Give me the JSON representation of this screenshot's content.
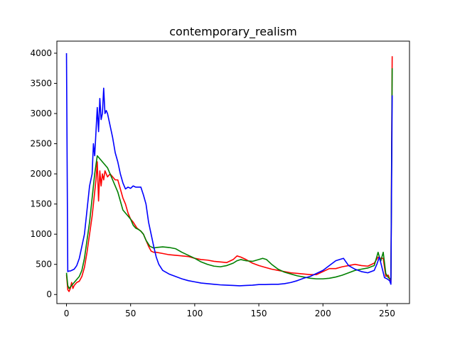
{
  "chart_data": {
    "type": "line",
    "title": "contemporary_realism",
    "xlabel": "",
    "ylabel": "",
    "xlim": [
      -7.5,
      267.5
    ],
    "ylim": [
      -150,
      4200
    ],
    "xticks": [
      0,
      50,
      100,
      150,
      200,
      250
    ],
    "yticks": [
      0,
      500,
      1000,
      1500,
      2000,
      2500,
      3000,
      3500,
      4000
    ],
    "grid": false,
    "legend": "none",
    "series": [
      {
        "color": "#ff0000",
        "points": [
          [
            0,
            330
          ],
          [
            1,
            80
          ],
          [
            2,
            50
          ],
          [
            3,
            100
          ],
          [
            4,
            200
          ],
          [
            5,
            100
          ],
          [
            6,
            150
          ],
          [
            8,
            200
          ],
          [
            10,
            220
          ],
          [
            12,
            300
          ],
          [
            14,
            450
          ],
          [
            16,
            700
          ],
          [
            18,
            1000
          ],
          [
            20,
            1300
          ],
          [
            22,
            1700
          ],
          [
            23,
            1900
          ],
          [
            24,
            2200
          ],
          [
            25,
            1550
          ],
          [
            26,
            2050
          ],
          [
            27,
            1800
          ],
          [
            28,
            2000
          ],
          [
            29,
            1900
          ],
          [
            30,
            2050
          ],
          [
            32,
            1950
          ],
          [
            34,
            2000
          ],
          [
            36,
            1950
          ],
          [
            38,
            1900
          ],
          [
            40,
            1900
          ],
          [
            42,
            1750
          ],
          [
            44,
            1600
          ],
          [
            46,
            1500
          ],
          [
            48,
            1350
          ],
          [
            50,
            1250
          ],
          [
            52,
            1200
          ],
          [
            55,
            1100
          ],
          [
            58,
            1050
          ],
          [
            60,
            1000
          ],
          [
            62,
            900
          ],
          [
            64,
            800
          ],
          [
            66,
            720
          ],
          [
            68,
            700
          ],
          [
            70,
            700
          ],
          [
            75,
            680
          ],
          [
            80,
            660
          ],
          [
            85,
            650
          ],
          [
            90,
            640
          ],
          [
            95,
            630
          ],
          [
            100,
            600
          ],
          [
            105,
            580
          ],
          [
            110,
            570
          ],
          [
            115,
            550
          ],
          [
            120,
            540
          ],
          [
            125,
            530
          ],
          [
            130,
            580
          ],
          [
            133,
            640
          ],
          [
            136,
            620
          ],
          [
            140,
            580
          ],
          [
            145,
            520
          ],
          [
            150,
            480
          ],
          [
            155,
            450
          ],
          [
            160,
            420
          ],
          [
            165,
            400
          ],
          [
            170,
            380
          ],
          [
            175,
            360
          ],
          [
            180,
            350
          ],
          [
            185,
            340
          ],
          [
            190,
            330
          ],
          [
            195,
            330
          ],
          [
            200,
            380
          ],
          [
            205,
            430
          ],
          [
            210,
            430
          ],
          [
            215,
            460
          ],
          [
            220,
            480
          ],
          [
            225,
            500
          ],
          [
            230,
            480
          ],
          [
            235,
            470
          ],
          [
            240,
            520
          ],
          [
            243,
            620
          ],
          [
            245,
            600
          ],
          [
            247,
            600
          ],
          [
            249,
            300
          ],
          [
            251,
            320
          ],
          [
            253,
            200
          ],
          [
            254,
            3950
          ]
        ]
      },
      {
        "color": "#008000",
        "points": [
          [
            0,
            360
          ],
          [
            1,
            150
          ],
          [
            2,
            100
          ],
          [
            4,
            150
          ],
          [
            6,
            200
          ],
          [
            8,
            250
          ],
          [
            10,
            300
          ],
          [
            12,
            400
          ],
          [
            14,
            600
          ],
          [
            16,
            900
          ],
          [
            18,
            1200
          ],
          [
            20,
            1600
          ],
          [
            22,
            2000
          ],
          [
            24,
            2300
          ],
          [
            26,
            2250
          ],
          [
            28,
            2200
          ],
          [
            30,
            2150
          ],
          [
            32,
            2100
          ],
          [
            34,
            2000
          ],
          [
            36,
            1900
          ],
          [
            38,
            1800
          ],
          [
            40,
            1700
          ],
          [
            42,
            1550
          ],
          [
            44,
            1400
          ],
          [
            46,
            1350
          ],
          [
            48,
            1300
          ],
          [
            50,
            1250
          ],
          [
            52,
            1150
          ],
          [
            54,
            1100
          ],
          [
            56,
            1080
          ],
          [
            58,
            1050
          ],
          [
            60,
            1000
          ],
          [
            62,
            900
          ],
          [
            65,
            800
          ],
          [
            68,
            770
          ],
          [
            70,
            780
          ],
          [
            75,
            790
          ],
          [
            80,
            780
          ],
          [
            85,
            760
          ],
          [
            90,
            700
          ],
          [
            95,
            650
          ],
          [
            100,
            600
          ],
          [
            105,
            540
          ],
          [
            110,
            500
          ],
          [
            115,
            470
          ],
          [
            120,
            460
          ],
          [
            125,
            480
          ],
          [
            130,
            520
          ],
          [
            133,
            560
          ],
          [
            136,
            580
          ],
          [
            140,
            560
          ],
          [
            145,
            550
          ],
          [
            150,
            580
          ],
          [
            153,
            600
          ],
          [
            156,
            580
          ],
          [
            160,
            500
          ],
          [
            165,
            420
          ],
          [
            170,
            370
          ],
          [
            175,
            340
          ],
          [
            180,
            310
          ],
          [
            185,
            290
          ],
          [
            190,
            270
          ],
          [
            195,
            260
          ],
          [
            200,
            260
          ],
          [
            205,
            270
          ],
          [
            210,
            290
          ],
          [
            215,
            320
          ],
          [
            220,
            360
          ],
          [
            225,
            400
          ],
          [
            230,
            420
          ],
          [
            235,
            440
          ],
          [
            240,
            480
          ],
          [
            243,
            700
          ],
          [
            245,
            550
          ],
          [
            247,
            700
          ],
          [
            249,
            350
          ],
          [
            251,
            280
          ],
          [
            253,
            250
          ],
          [
            254,
            3750
          ]
        ]
      },
      {
        "color": "#0000ff",
        "points": [
          [
            0,
            4000
          ],
          [
            1,
            380
          ],
          [
            2,
            390
          ],
          [
            3,
            390
          ],
          [
            4,
            400
          ],
          [
            6,
            420
          ],
          [
            8,
            480
          ],
          [
            10,
            600
          ],
          [
            12,
            800
          ],
          [
            14,
            1000
          ],
          [
            16,
            1400
          ],
          [
            18,
            1800
          ],
          [
            20,
            2000
          ],
          [
            21,
            2500
          ],
          [
            22,
            2300
          ],
          [
            23,
            2700
          ],
          [
            24,
            3100
          ],
          [
            25,
            2700
          ],
          [
            26,
            3250
          ],
          [
            27,
            2900
          ],
          [
            28,
            3000
          ],
          [
            29,
            3420
          ],
          [
            30,
            3000
          ],
          [
            31,
            3050
          ],
          [
            32,
            3000
          ],
          [
            34,
            2800
          ],
          [
            36,
            2600
          ],
          [
            38,
            2350
          ],
          [
            40,
            2200
          ],
          [
            42,
            2000
          ],
          [
            44,
            1850
          ],
          [
            46,
            1750
          ],
          [
            48,
            1780
          ],
          [
            50,
            1760
          ],
          [
            52,
            1800
          ],
          [
            54,
            1780
          ],
          [
            56,
            1780
          ],
          [
            58,
            1780
          ],
          [
            60,
            1650
          ],
          [
            62,
            1500
          ],
          [
            64,
            1200
          ],
          [
            66,
            1000
          ],
          [
            68,
            800
          ],
          [
            70,
            620
          ],
          [
            72,
            500
          ],
          [
            75,
            400
          ],
          [
            80,
            340
          ],
          [
            85,
            300
          ],
          [
            90,
            260
          ],
          [
            95,
            230
          ],
          [
            100,
            210
          ],
          [
            105,
            190
          ],
          [
            110,
            180
          ],
          [
            115,
            170
          ],
          [
            120,
            160
          ],
          [
            125,
            155
          ],
          [
            130,
            150
          ],
          [
            135,
            145
          ],
          [
            140,
            150
          ],
          [
            145,
            155
          ],
          [
            150,
            165
          ],
          [
            155,
            165
          ],
          [
            160,
            170
          ],
          [
            165,
            170
          ],
          [
            170,
            180
          ],
          [
            175,
            200
          ],
          [
            180,
            230
          ],
          [
            185,
            270
          ],
          [
            190,
            300
          ],
          [
            195,
            350
          ],
          [
            200,
            400
          ],
          [
            205,
            480
          ],
          [
            210,
            560
          ],
          [
            213,
            580
          ],
          [
            216,
            600
          ],
          [
            220,
            480
          ],
          [
            225,
            420
          ],
          [
            230,
            380
          ],
          [
            235,
            360
          ],
          [
            240,
            400
          ],
          [
            242,
            500
          ],
          [
            244,
            620
          ],
          [
            246,
            450
          ],
          [
            248,
            280
          ],
          [
            250,
            260
          ],
          [
            252,
            230
          ],
          [
            253,
            170
          ],
          [
            254,
            3300
          ]
        ]
      }
    ]
  }
}
